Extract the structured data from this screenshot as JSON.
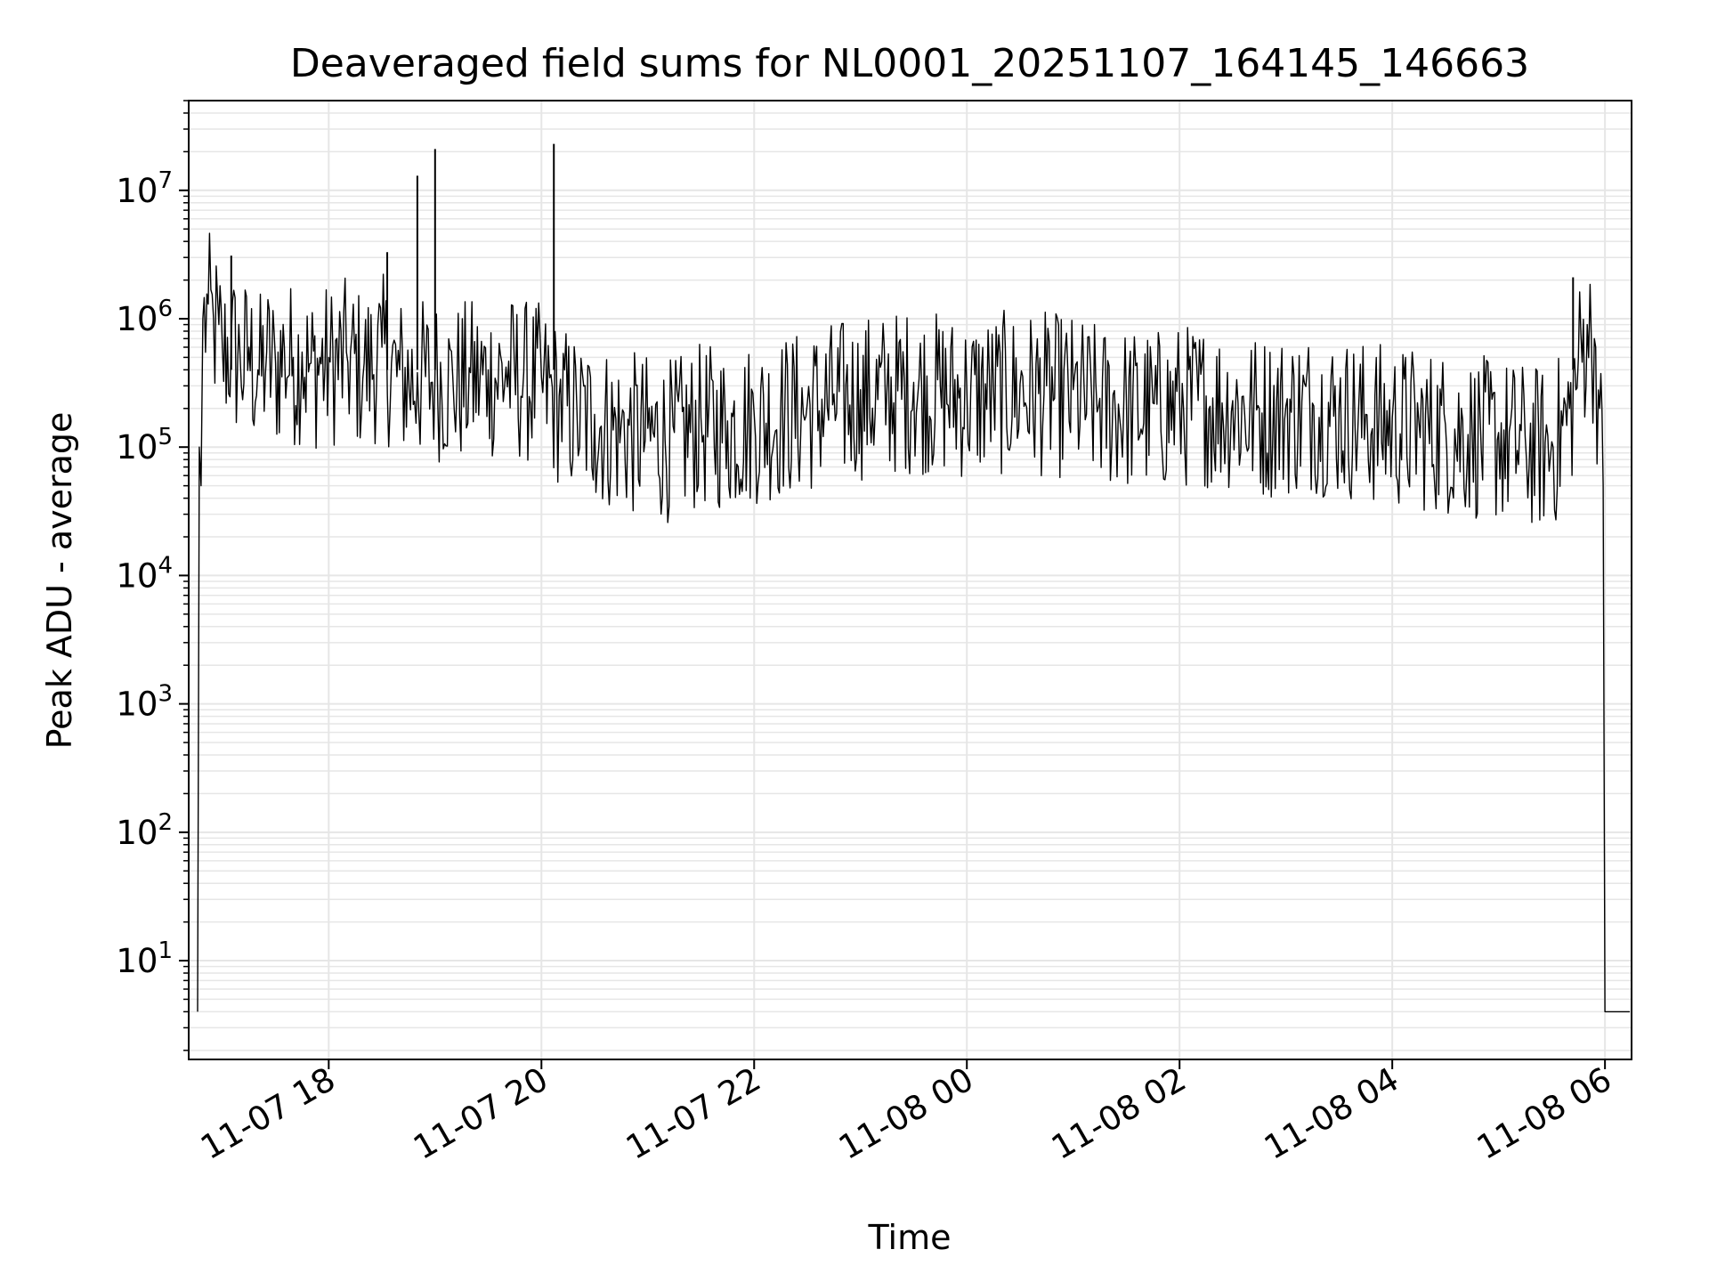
{
  "chart_data": {
    "type": "line",
    "title": "Deaveraged field sums for NL0001_20251107_164145_146663",
    "xlabel": "Time",
    "ylabel": "Peak ADU - average",
    "y_scale": "log",
    "ylim": [
      1.7,
      50000000
    ],
    "xlim": [
      "2025-11-07 16:41",
      "2025-11-08 06:15"
    ],
    "grid": true,
    "line_color": "#000000",
    "grid_color": "#e6e6e6",
    "x_ticks": [
      {
        "value": "2025-11-07 18:00",
        "label": "11-07 18"
      },
      {
        "value": "2025-11-07 20:00",
        "label": "11-07 20"
      },
      {
        "value": "2025-11-07 22:00",
        "label": "11-07 22"
      },
      {
        "value": "2025-11-08 00:00",
        "label": "11-08 00"
      },
      {
        "value": "2025-11-08 02:00",
        "label": "11-08 02"
      },
      {
        "value": "2025-11-08 04:00",
        "label": "11-08 04"
      },
      {
        "value": "2025-11-08 06:00",
        "label": "11-08 06"
      }
    ],
    "y_ticks": [
      {
        "value": 10,
        "base": "10",
        "exp": "1"
      },
      {
        "value": 100,
        "base": "10",
        "exp": "2"
      },
      {
        "value": 1000,
        "base": "10",
        "exp": "3"
      },
      {
        "value": 10000,
        "base": "10",
        "exp": "4"
      },
      {
        "value": 100000,
        "base": "10",
        "exp": "5"
      },
      {
        "value": 1000000,
        "base": "10",
        "exp": "6"
      },
      {
        "value": 10000000,
        "base": "10",
        "exp": "7"
      }
    ],
    "series": [
      {
        "x": [
          "2025-11-07 16:46",
          "2025-11-07 16:47",
          "2025-11-07 16:48",
          "2025-11-07 16:49",
          "2025-11-07 16:52",
          "2025-11-07 16:55",
          "2025-11-07 16:58",
          "2025-11-07 17:00",
          "2025-11-07 17:05",
          "2025-11-07 17:10",
          "2025-11-07 17:15",
          "2025-11-07 17:20",
          "2025-11-07 17:25",
          "2025-11-07 17:30",
          "2025-11-07 17:35",
          "2025-11-07 17:40",
          "2025-11-07 17:45",
          "2025-11-07 17:50",
          "2025-11-07 17:55",
          "2025-11-07 18:00",
          "2025-11-07 18:10",
          "2025-11-07 18:20",
          "2025-11-07 18:30",
          "2025-11-07 18:40",
          "2025-11-07 18:50",
          "2025-11-07 19:00",
          "2025-11-07 19:10",
          "2025-11-07 19:20",
          "2025-11-07 19:30",
          "2025-11-07 19:40",
          "2025-11-07 19:50",
          "2025-11-07 20:00",
          "2025-11-07 20:10",
          "2025-11-07 20:20",
          "2025-11-07 20:30",
          "2025-11-07 20:45",
          "2025-11-07 21:00",
          "2025-11-07 21:15",
          "2025-11-07 21:30",
          "2025-11-07 21:45",
          "2025-11-07 22:00",
          "2025-11-07 22:15",
          "2025-11-07 22:30",
          "2025-11-07 22:45",
          "2025-11-07 23:00",
          "2025-11-07 23:15",
          "2025-11-07 23:30",
          "2025-11-07 23:45",
          "2025-11-08 00:00",
          "2025-11-08 00:15",
          "2025-11-08 00:30",
          "2025-11-08 00:45",
          "2025-11-08 01:00",
          "2025-11-08 01:15",
          "2025-11-08 01:30",
          "2025-11-08 01:45",
          "2025-11-08 02:00",
          "2025-11-08 02:15",
          "2025-11-08 02:30",
          "2025-11-08 02:45",
          "2025-11-08 03:00",
          "2025-11-08 03:15",
          "2025-11-08 03:30",
          "2025-11-08 03:45",
          "2025-11-08 04:00",
          "2025-11-08 04:15",
          "2025-11-08 04:30",
          "2025-11-08 04:45",
          "2025-11-08 05:00",
          "2025-11-08 05:15",
          "2025-11-08 05:30",
          "2025-11-08 05:40",
          "2025-11-08 05:45",
          "2025-11-08 05:50",
          "2025-11-08 05:54",
          "2025-11-08 05:57",
          "2025-11-08 05:59",
          "2025-11-08 06:00",
          "2025-11-08 06:05",
          "2025-11-08 06:14"
        ],
        "y": [
          4,
          100000,
          50000,
          1000000,
          1300000,
          1000000,
          900000,
          600000,
          700000,
          500000,
          600000,
          400000,
          550000,
          450000,
          600000,
          500000,
          550000,
          450000,
          500000,
          500000,
          550000,
          450000,
          600000,
          400000,
          380000,
          400000,
          350000,
          380000,
          400000,
          420000,
          380000,
          350000,
          250000,
          200000,
          180000,
          150000,
          140000,
          130000,
          170000,
          160000,
          180000,
          200000,
          220000,
          260000,
          280000,
          300000,
          320000,
          300000,
          280000,
          300000,
          310000,
          300000,
          280000,
          240000,
          230000,
          220000,
          240000,
          250000,
          230000,
          200000,
          210000,
          220000,
          200000,
          180000,
          170000,
          160000,
          150000,
          140000,
          130000,
          120000,
          110000,
          200000,
          500000,
          900000,
          700000,
          200000,
          50000,
          4,
          4,
          4
        ]
      }
    ],
    "spikes": [
      {
        "x": "2025-11-07 17:05",
        "y": 3100000
      },
      {
        "x": "2025-11-07 18:33",
        "y": 3300000
      },
      {
        "x": "2025-11-07 18:50",
        "y": 13000000
      },
      {
        "x": "2025-11-07 19:00",
        "y": 21000000
      },
      {
        "x": "2025-11-07 20:07",
        "y": 23000000
      },
      {
        "x": "2025-11-08 05:42",
        "y": 2100000
      }
    ]
  }
}
